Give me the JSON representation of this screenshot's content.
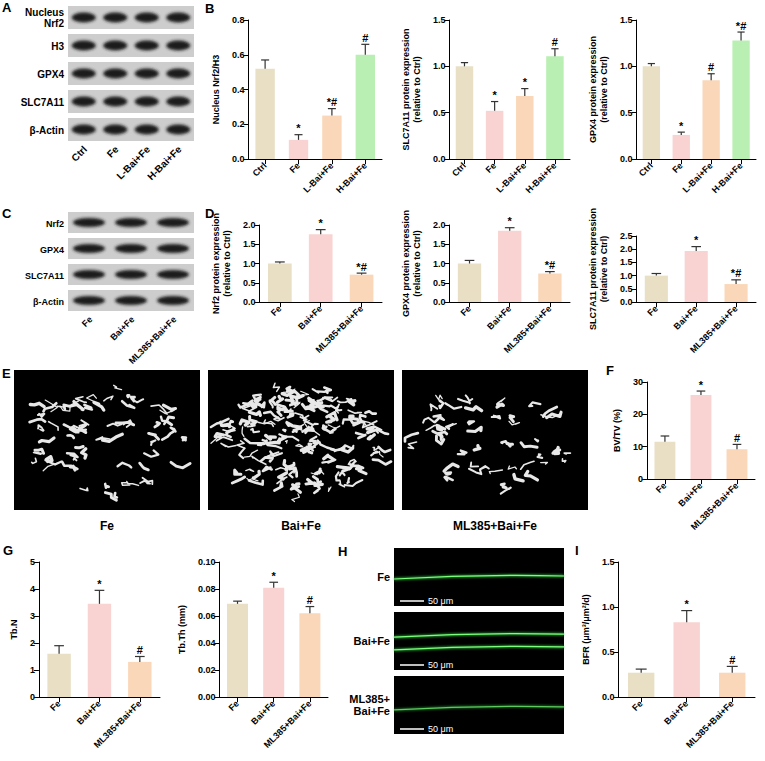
{
  "blots": [
    {
      "letter": "A",
      "rows": [
        "Nucleus Nrf2",
        "H3",
        "GPX4",
        "SLC7A11",
        "β-Actin"
      ],
      "lanes": [
        "Ctrl",
        "Fe",
        "L-Bai+Fe",
        "H-Bai+Fe"
      ]
    },
    {
      "letter": "C",
      "rows": [
        "Nrf2",
        "GPX4",
        "SLC7A11",
        "β-Actin"
      ],
      "lanes": [
        "Fe",
        "Bai+Fe",
        "ML385+Bai+Fe"
      ]
    }
  ],
  "microct": {
    "letter": "E",
    "labels": [
      "Fe",
      "Bai+Fe",
      "ML385+Bai+Fe"
    ]
  },
  "fluorescence": {
    "letter": "H",
    "labels": [
      "Fe",
      "Bai+Fe",
      "ML385+Bai+Fe"
    ],
    "scale_bar": "50 μm"
  },
  "chart_data": [
    {
      "letter": "B",
      "type": "bar",
      "ylabel": "Nucleus Nrf2/H3",
      "categories": [
        "Ctrl",
        "Fe",
        "L-Bai+Fe",
        "H-Bai+Fe"
      ],
      "values": [
        0.52,
        0.11,
        0.25,
        0.6
      ],
      "errors": [
        0.05,
        0.03,
        0.04,
        0.06
      ],
      "annotations": [
        null,
        "*",
        "*#",
        "#"
      ],
      "colors": [
        "#e8dfc4",
        "#f8d3d1",
        "#fad7b8",
        "#b9efb2"
      ],
      "ylim": [
        0,
        0.8
      ],
      "yticks": [
        {
          "value": 0,
          "label": "0.0"
        },
        0.2,
        0.4,
        0.6,
        0.8
      ],
      "grid": false
    },
    {
      "type": "bar",
      "ylabel": "SLC7A11 protein expression (relative to Ctrl)",
      "categories": [
        "Ctrl",
        "Fe",
        "L-Bai+Fe",
        "H-Bai+Fe"
      ],
      "values": [
        1.0,
        0.52,
        0.68,
        1.11
      ],
      "errors": [
        0.04,
        0.1,
        0.08,
        0.08
      ],
      "annotations": [
        null,
        "*",
        "*",
        "#"
      ],
      "colors": [
        "#e8dfc4",
        "#f8d3d1",
        "#fad7b8",
        "#b9efb2"
      ],
      "ylim": [
        0,
        1.5
      ],
      "yticks": [
        {
          "value": 0,
          "label": "0.0"
        },
        0.5,
        {
          "value": 1,
          "label": "1.0"
        },
        1.5
      ],
      "grid": false
    },
    {
      "type": "bar",
      "ylabel": "GPX4 protein expression (relative to Ctrl)",
      "categories": [
        "Ctrl",
        "Fe",
        "L-Bai+Fe",
        "H-Bai+Fe"
      ],
      "values": [
        1.0,
        0.26,
        0.85,
        1.28
      ],
      "errors": [
        0.03,
        0.03,
        0.07,
        0.09
      ],
      "annotations": [
        null,
        "*",
        "#",
        "*#"
      ],
      "colors": [
        "#e8dfc4",
        "#f8d3d1",
        "#fad7b8",
        "#b9efb2"
      ],
      "ylim": [
        0,
        1.5
      ],
      "yticks": [
        {
          "value": 0,
          "label": "0.0"
        },
        0.5,
        {
          "value": 1,
          "label": "1.0"
        },
        1.5
      ],
      "grid": false
    },
    {
      "letter": "D",
      "type": "bar",
      "ylabel": "Nrf2 protein expression (relative to Ctrl)",
      "categories": [
        "Fe",
        "Bai+Fe",
        "ML385+Bai+Fe"
      ],
      "values": [
        1.0,
        1.76,
        0.71
      ],
      "errors": [
        0.04,
        0.12,
        0.04
      ],
      "annotations": [
        null,
        "*",
        "*#"
      ],
      "colors": [
        "#e8dfc4",
        "#f8d3d1",
        "#fad7b8"
      ],
      "ylim": [
        0,
        2.0
      ],
      "yticks": [
        {
          "value": 0,
          "label": "0.0"
        },
        0.5,
        {
          "value": 1,
          "label": "1.0"
        },
        1.5,
        {
          "value": 2,
          "label": "2.0"
        }
      ],
      "grid": false
    },
    {
      "type": "bar",
      "ylabel": "GPX4 protein expression (relative to Ctrl)",
      "categories": [
        "Fe",
        "Bai+Fe",
        "ML385+Bai+Fe"
      ],
      "values": [
        1.0,
        1.85,
        0.74
      ],
      "errors": [
        0.08,
        0.08,
        0.05
      ],
      "annotations": [
        null,
        "*",
        "*#"
      ],
      "colors": [
        "#e8dfc4",
        "#f8d3d1",
        "#fad7b8"
      ],
      "ylim": [
        0,
        2.0
      ],
      "yticks": [
        {
          "value": 0,
          "label": "0.0"
        },
        0.5,
        {
          "value": 1,
          "label": "1.0"
        },
        1.5,
        {
          "value": 2,
          "label": "2.0"
        }
      ],
      "grid": false
    },
    {
      "type": "bar",
      "ylabel": "SLC7A11 protein expression (relative to Ctrl)",
      "categories": [
        "Fe",
        "Bai+Fe",
        "ML385+Bai+Fe"
      ],
      "values": [
        1.0,
        1.93,
        0.68
      ],
      "errors": [
        0.08,
        0.17,
        0.16
      ],
      "annotations": [
        null,
        "*",
        "*#"
      ],
      "colors": [
        "#e8dfc4",
        "#f8d3d1",
        "#fad7b8"
      ],
      "ylim": [
        0,
        2.5
      ],
      "yticks": [
        {
          "value": 0,
          "label": "0.0"
        },
        0.5,
        {
          "value": 1,
          "label": "1.0"
        },
        1.5,
        {
          "value": 2,
          "label": "2.0"
        },
        2.5
      ],
      "grid": false
    },
    {
      "letter": "F",
      "type": "bar",
      "ylabel": "BV/TV (%)",
      "categories": [
        "Fe",
        "Bai+Fe",
        "ML385+Bai+Fe"
      ],
      "values": [
        11.5,
        26.0,
        9.2
      ],
      "errors": [
        1.8,
        1.2,
        1.5
      ],
      "annotations": [
        null,
        "*",
        "#"
      ],
      "colors": [
        "#e8dfc4",
        "#f8d3d1",
        "#fad7b8"
      ],
      "ylim": [
        0,
        30
      ],
      "yticks": [
        0,
        10,
        20,
        30
      ],
      "grid": false
    },
    {
      "letter": "G",
      "type": "bar",
      "ylabel": "Tb.N",
      "categories": [
        "Fe",
        "Bai+Fe",
        "ML385+Bai+Fe"
      ],
      "values": [
        1.6,
        3.45,
        1.3
      ],
      "errors": [
        0.3,
        0.5,
        0.2
      ],
      "annotations": [
        null,
        "*",
        "#"
      ],
      "colors": [
        "#e8dfc4",
        "#f8d3d1",
        "#fad7b8"
      ],
      "ylim": [
        0,
        5
      ],
      "yticks": [
        0,
        1,
        2,
        3,
        4,
        5
      ],
      "grid": false
    },
    {
      "type": "bar",
      "ylabel": "Tb.Th (mm)",
      "categories": [
        "Fe",
        "Bai+Fe",
        "ML385+Bai+Fe"
      ],
      "values": [
        0.069,
        0.081,
        0.062
      ],
      "errors": [
        0.002,
        0.004,
        0.005
      ],
      "annotations": [
        null,
        "*",
        "#"
      ],
      "colors": [
        "#e8dfc4",
        "#f8d3d1",
        "#fad7b8"
      ],
      "ylim": [
        0,
        0.1
      ],
      "yticks": [
        {
          "value": 0,
          "label": "0.00"
        },
        0.02,
        0.04,
        0.06,
        0.08,
        {
          "value": 0.1,
          "label": "0.10"
        }
      ],
      "grid": false
    },
    {
      "letter": "I",
      "type": "bar",
      "ylabel": "BFR (μm³/μm²/d)",
      "categories": [
        "Fe",
        "Bai+Fe",
        "ML385+Bai+Fe"
      ],
      "values": [
        0.27,
        0.83,
        0.27
      ],
      "errors": [
        0.04,
        0.13,
        0.07
      ],
      "annotations": [
        null,
        "*",
        "#"
      ],
      "colors": [
        "#e8dfc4",
        "#f8d3d1",
        "#fad7b8"
      ],
      "ylim": [
        0,
        1.5
      ],
      "yticks": [
        {
          "value": 0,
          "label": "0.0"
        },
        0.5,
        {
          "value": 1,
          "label": "1.0"
        },
        1.5
      ],
      "grid": false
    }
  ]
}
